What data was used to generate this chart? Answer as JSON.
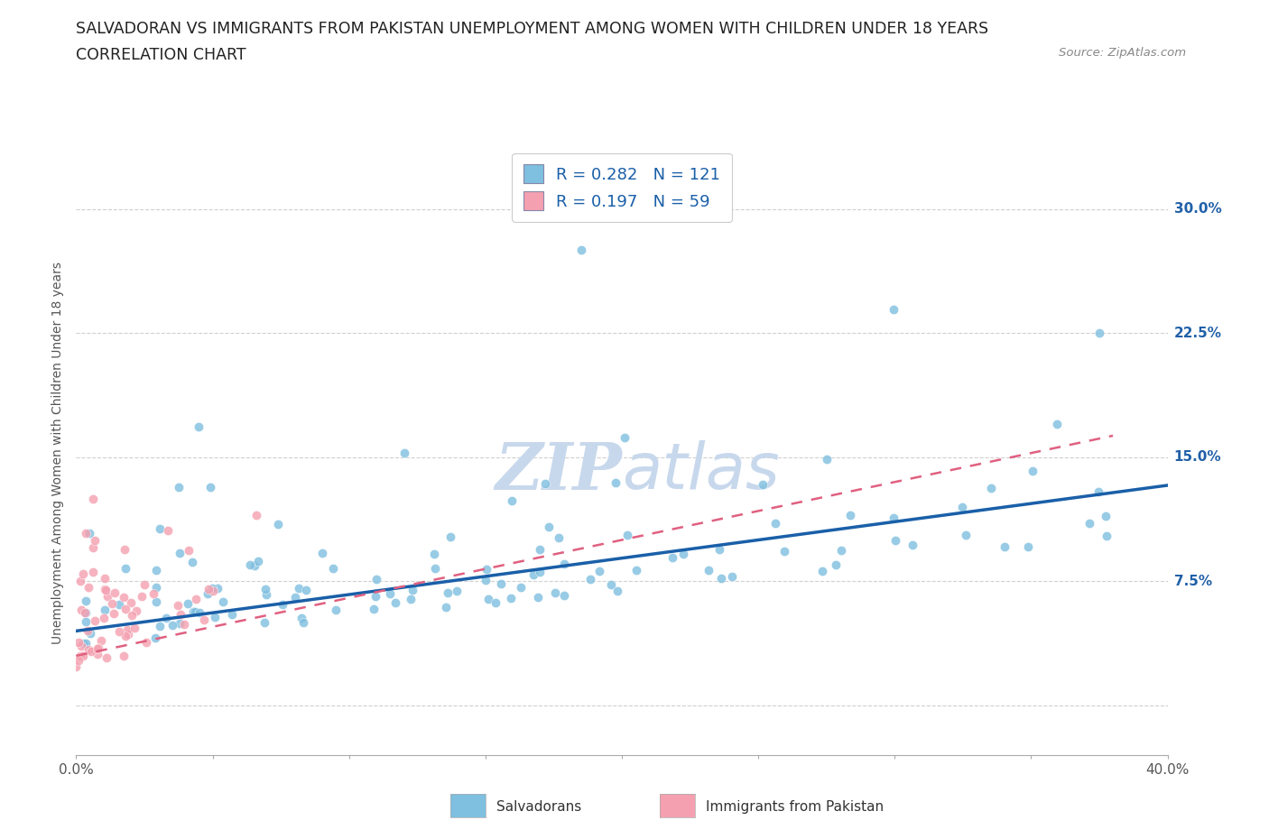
{
  "title_line1": "SALVADORAN VS IMMIGRANTS FROM PAKISTAN UNEMPLOYMENT AMONG WOMEN WITH CHILDREN UNDER 18 YEARS",
  "title_line2": "CORRELATION CHART",
  "source_text": "Source: ZipAtlas.com",
  "ylabel": "Unemployment Among Women with Children Under 18 years",
  "xlim": [
    0.0,
    0.4
  ],
  "ylim": [
    -0.03,
    0.335
  ],
  "ytick_positions": [
    0.0,
    0.075,
    0.15,
    0.225,
    0.3
  ],
  "yticklabels": [
    "",
    "7.5%",
    "15.0%",
    "22.5%",
    "30.0%"
  ],
  "R_salvadoran": 0.282,
  "N_salvadoran": 121,
  "R_pakistan": 0.197,
  "N_pakistan": 59,
  "color_salvadoran": "#7fbfdf",
  "color_pakistan": "#f4a0b0",
  "trendline_salvadoran_color": "#1a5fa8",
  "trendline_pakistan_color": "#e06080",
  "background_color": "#ffffff",
  "grid_color": "#bbbbbb",
  "watermark_color": "#c8d8ec",
  "legend_label_salvadoran": "Salvadorans",
  "legend_label_pakistan": "Immigrants from Pakistan"
}
